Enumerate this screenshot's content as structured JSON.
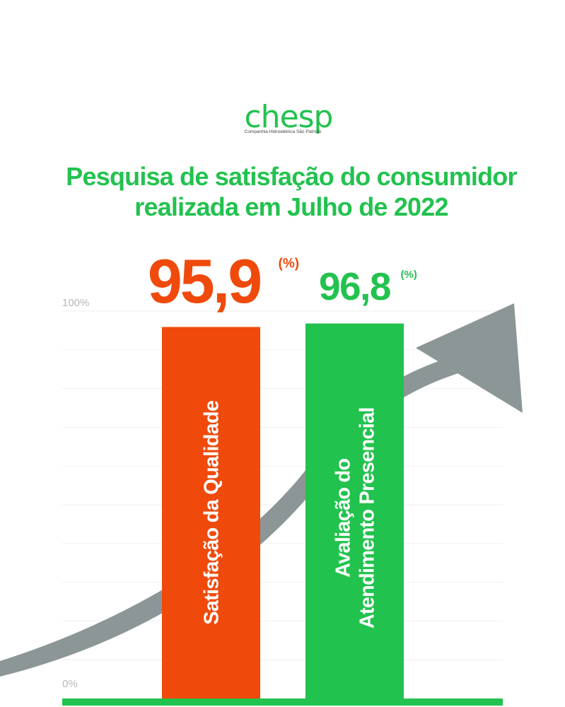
{
  "logo": {
    "text": "chesp",
    "subtitle": "Companhia Hidroelétrica São Patrício"
  },
  "title_lines": [
    "Pesquisa de satisfação do consumidor",
    "realizada em Julho de 2022"
  ],
  "colors": {
    "green": "#22c24e",
    "orange": "#ef4a0c",
    "arrow": "#8c9696",
    "grid": "#eef0ee",
    "axis_text": "#b5b9b5"
  },
  "chart_data": {
    "type": "bar",
    "categories": [
      "Satisfação da Qualidade",
      "Avaliação do Atendimento Presencial"
    ],
    "category_lines": [
      [
        "Satisfação da Qualidade"
      ],
      [
        "Avaliação do",
        "Atendimento Presencial"
      ]
    ],
    "values": [
      95.9,
      96.8
    ],
    "value_labels": [
      "95,9",
      "96,8"
    ],
    "unit": "(%)",
    "bar_colors": [
      "#ef4a0c",
      "#22c24e"
    ],
    "ylim": [
      0,
      100
    ],
    "ytick_labels": [
      "0%",
      "100%"
    ],
    "grid": true
  }
}
